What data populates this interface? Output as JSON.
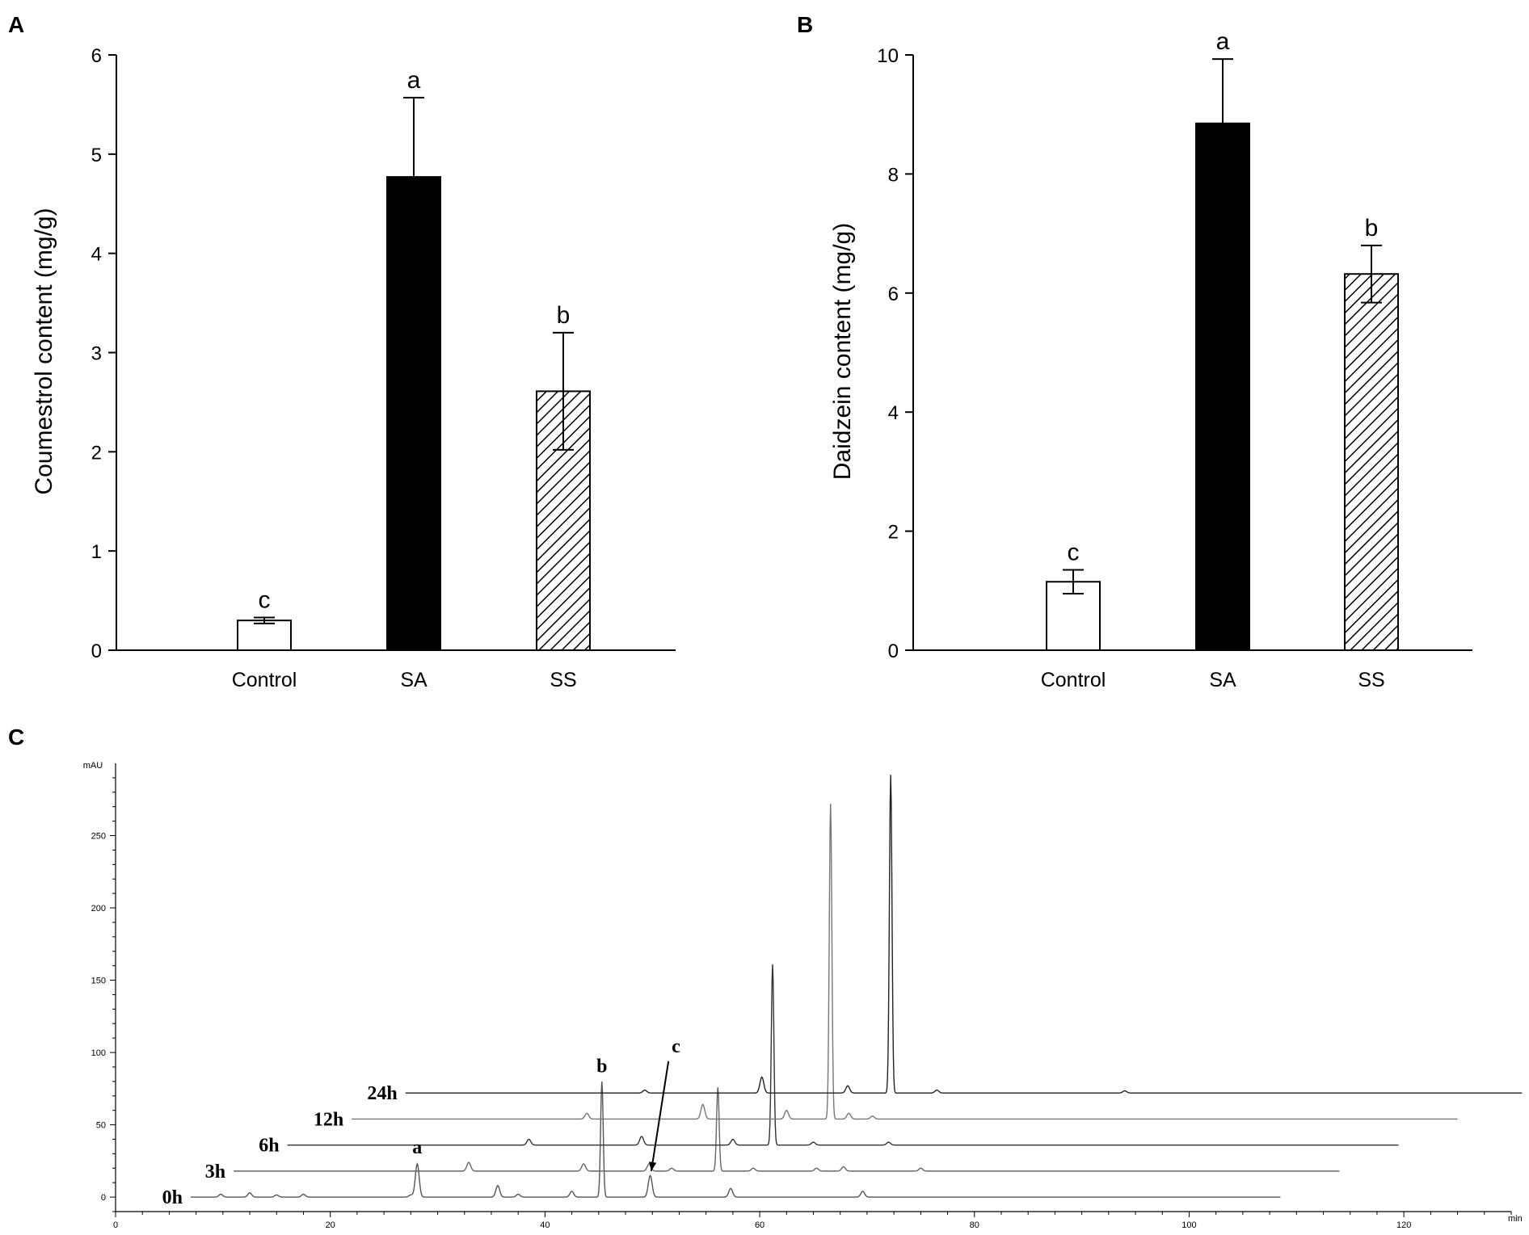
{
  "chart_data": [
    {
      "panel_label": "A",
      "type": "bar",
      "categories": [
        "Control",
        "SA",
        "SS"
      ],
      "values": [
        0.3,
        4.77,
        2.61
      ],
      "errors": [
        0.03,
        0.8,
        0.59
      ],
      "significance": [
        "c",
        "a",
        "b"
      ],
      "fills": [
        "white",
        "black",
        "hatched"
      ],
      "ylabel": "Coumestrol content (mg/g)",
      "ylim": [
        0,
        6
      ],
      "yticks": [
        "0",
        "1",
        "2",
        "3",
        "4",
        "5",
        "6"
      ],
      "grid": false
    },
    {
      "panel_label": "B",
      "type": "bar",
      "categories": [
        "Control",
        "SA",
        "SS"
      ],
      "values": [
        1.15,
        8.85,
        6.32
      ],
      "errors": [
        0.2,
        1.08,
        0.48
      ],
      "significance": [
        "c",
        "a",
        "b"
      ],
      "fills": [
        "white",
        "black",
        "hatched"
      ],
      "ylabel": "Daidzein content (mg/g)",
      "ylim": [
        0,
        10
      ],
      "yticks": [
        "0",
        "2",
        "4",
        "6",
        "8",
        "10"
      ],
      "grid": false
    },
    {
      "panel_label": "C",
      "type": "line",
      "ylabel": "mAU",
      "xlabel": "min",
      "xlim": [
        0,
        130
      ],
      "ylim": [
        -10,
        300
      ],
      "xticks": [
        "0",
        "20",
        "40",
        "60",
        "80",
        "100",
        "120"
      ],
      "yticks": [
        "0",
        "50",
        "100",
        "150",
        "200",
        "250"
      ],
      "peak_labels": [
        "a",
        "b",
        "c"
      ],
      "series": [
        {
          "name": "0h",
          "x_start": 7,
          "x_end": 108.5,
          "x_offset": 0,
          "y_offset": 0,
          "peaks": [
            [
              9.8,
              2
            ],
            [
              12.5,
              3
            ],
            [
              15,
              1.5
            ],
            [
              17.5,
              2
            ],
            [
              27.5,
              1.5
            ],
            [
              28.1,
              23
            ],
            [
              35.6,
              8
            ],
            [
              37.5,
              2
            ],
            [
              42.5,
              4
            ],
            [
              45.3,
              80
            ],
            [
              49.8,
              15
            ],
            [
              57.3,
              6
            ],
            [
              69.6,
              4
            ]
          ]
        },
        {
          "name": "3h",
          "x_start": 11,
          "x_end": 114,
          "x_offset": 4.5,
          "y_offset": 18,
          "peaks": [
            [
              28.4,
              6
            ],
            [
              39.1,
              5
            ],
            [
              45.2,
              5
            ],
            [
              47.3,
              2
            ],
            [
              51.6,
              58
            ],
            [
              54.9,
              2
            ],
            [
              60.8,
              2
            ],
            [
              63.3,
              3
            ],
            [
              70.5,
              2
            ]
          ]
        },
        {
          "name": "6h",
          "x_start": 16,
          "x_end": 119.5,
          "x_offset": 9,
          "y_offset": 36,
          "peaks": [
            [
              29.5,
              4
            ],
            [
              40,
              6
            ],
            [
              48.5,
              4
            ],
            [
              52.2,
              125
            ],
            [
              56,
              2
            ],
            [
              63,
              2
            ]
          ]
        },
        {
          "name": "12h",
          "x_start": 22,
          "x_end": 125,
          "x_offset": 14.5,
          "y_offset": 54,
          "peaks": [
            [
              29.4,
              4
            ],
            [
              40.2,
              10
            ],
            [
              48,
              6
            ],
            [
              52.1,
              218
            ],
            [
              53.8,
              4
            ],
            [
              56,
              2
            ]
          ]
        },
        {
          "name": "24h",
          "x_start": 27,
          "x_end": 131,
          "x_offset": 20,
          "y_offset": 72,
          "peaks": [
            [
              29.3,
              2
            ],
            [
              40.2,
              11
            ],
            [
              48.2,
              5
            ],
            [
              52.2,
              220
            ],
            [
              56.5,
              2
            ],
            [
              74,
              1.5
            ]
          ]
        }
      ]
    }
  ]
}
